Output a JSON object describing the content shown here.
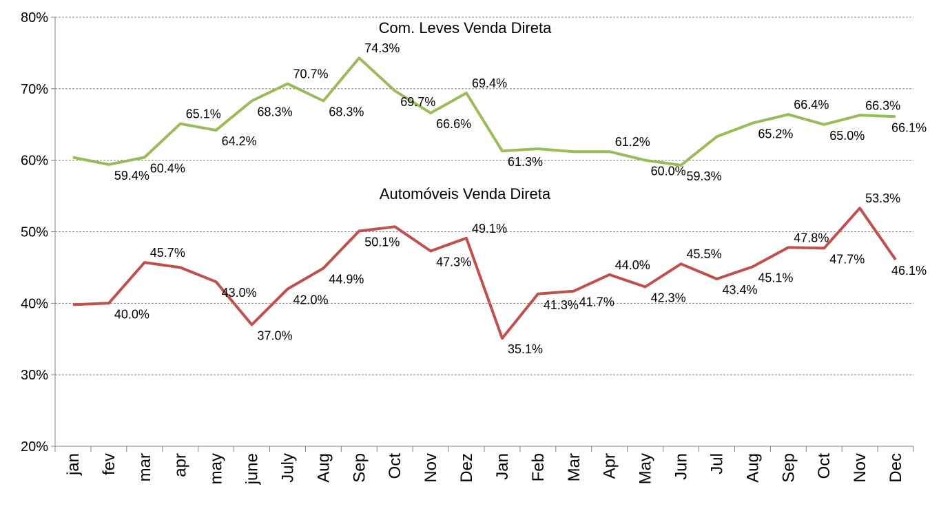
{
  "chart_data": {
    "type": "line",
    "categories": [
      "jan",
      "fev",
      "mar",
      "apr",
      "may",
      "june",
      "July",
      "Aug",
      "Sep",
      "Oct",
      "Nov",
      "Dez",
      "Jan",
      "Feb",
      "Mar",
      "Apr",
      "May",
      "Jun",
      "Jul",
      "Aug",
      "Sep",
      "Oct",
      "Nov",
      "Dec"
    ],
    "y_tick_labels": [
      "20%",
      "30%",
      "40%",
      "50%",
      "60%",
      "70%",
      "80%"
    ],
    "ylim": [
      20,
      80
    ],
    "y_unit": "%",
    "grid": true,
    "series": [
      {
        "name": "Com. Leves Venda Direta",
        "color": "#9bbb59",
        "values": [
          60.4,
          59.4,
          60.4,
          65.1,
          64.2,
          68.3,
          70.7,
          68.3,
          74.3,
          69.7,
          66.6,
          69.4,
          61.3,
          61.6,
          61.2,
          61.2,
          60.0,
          59.3,
          63.3,
          65.2,
          66.4,
          65.0,
          66.3,
          66.1
        ],
        "labels": [
          "",
          "59.4%",
          "60.4%",
          "65.1%",
          "64.2%",
          "68.3%",
          "70.7%",
          "68.3%",
          "74.3%",
          "69.7%",
          "66.6%",
          "69.4%",
          "61.3%",
          "",
          "",
          "61.2%",
          "60.0%",
          "59.3%",
          "",
          "65.2%",
          "66.4%",
          "65.0%",
          "66.3%",
          "66.1%"
        ]
      },
      {
        "name": "Automóveis Venda Direta",
        "color": "#c0504d",
        "values": [
          39.8,
          40.0,
          45.7,
          45.0,
          43.0,
          37.0,
          42.0,
          44.9,
          50.1,
          50.7,
          47.3,
          49.1,
          35.1,
          41.3,
          41.7,
          44.0,
          42.3,
          45.5,
          43.4,
          45.1,
          47.8,
          47.7,
          53.3,
          46.1
        ],
        "labels": [
          "",
          "40.0%",
          "45.7%",
          "",
          "43.0%",
          "37.0%",
          "42.0%",
          "44.9%",
          "50.1%",
          "",
          "47.3%",
          "49.1%",
          "35.1%",
          "41.3%",
          "41.7%",
          "44.0%",
          "42.3%",
          "45.5%",
          "43.4%",
          "45.1%",
          "47.8%",
          "47.7%",
          "53.3%",
          "46.1%"
        ]
      }
    ]
  }
}
